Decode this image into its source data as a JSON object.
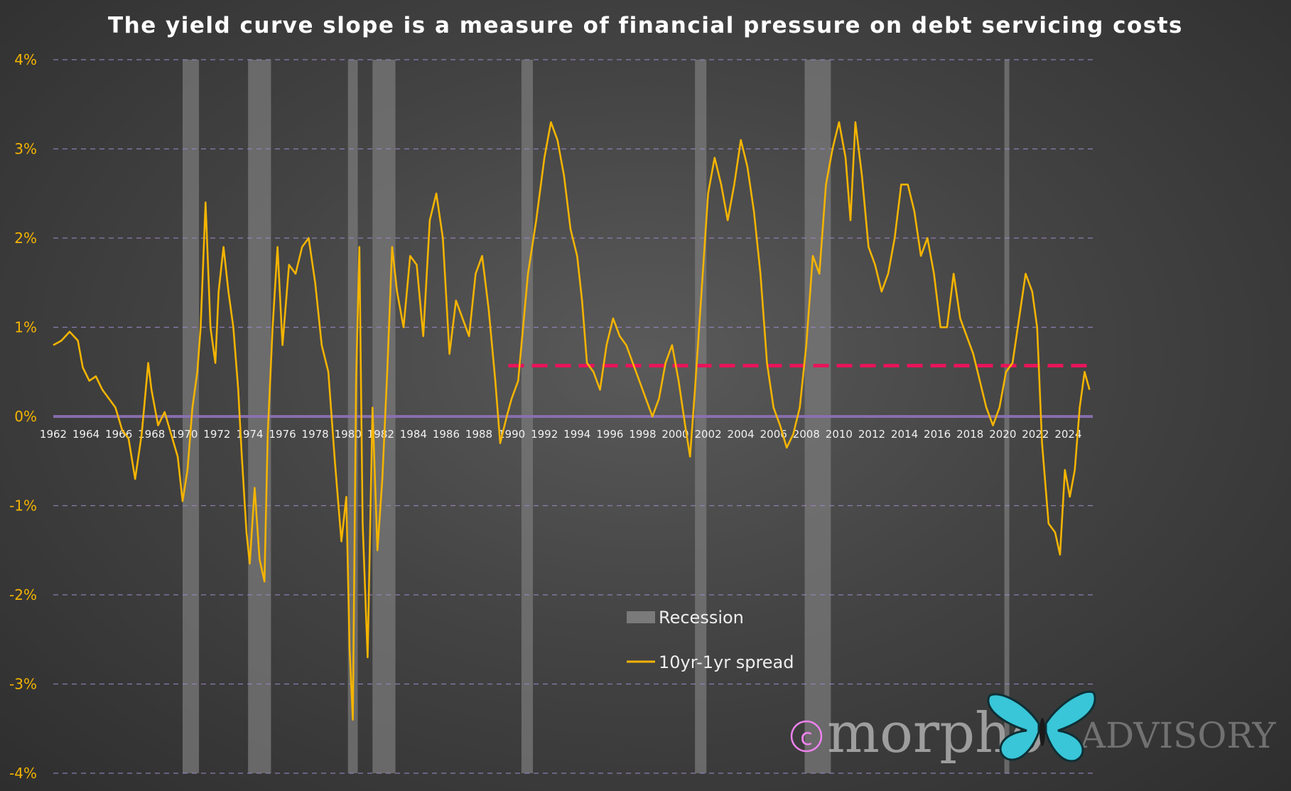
{
  "chart_data": {
    "type": "line",
    "title": "The yield curve slope is a measure of financial pressure on debt servicing costs",
    "ylim": [
      -4,
      4
    ],
    "xlim": [
      1962,
      2025.5
    ],
    "y_ticks": [
      {
        "value": 4,
        "label": "4%"
      },
      {
        "value": 3,
        "label": "3%"
      },
      {
        "value": 2,
        "label": "2%"
      },
      {
        "value": 1,
        "label": "1%"
      },
      {
        "value": 0,
        "label": "0%"
      },
      {
        "value": -1,
        "label": "-1%"
      },
      {
        "value": -2,
        "label": "-2%"
      },
      {
        "value": -3,
        "label": "-3%"
      },
      {
        "value": -4,
        "label": "-4%"
      }
    ],
    "x_ticks": [
      "1962",
      "1964",
      "1966",
      "1968",
      "1970",
      "1972",
      "1974",
      "1976",
      "1978",
      "1980",
      "1982",
      "1984",
      "1986",
      "1988",
      "1990",
      "1992",
      "1994",
      "1996",
      "1998",
      "2000",
      "2002",
      "2004",
      "2006",
      "2008",
      "2010",
      "2012",
      "2014",
      "2016",
      "2018",
      "2020",
      "2022",
      "2024"
    ],
    "grid": "horizontal dashed",
    "legend_position": "bottom-center",
    "legend": {
      "recession": "Recession",
      "spread": "10yr-1yr spread"
    },
    "recessions": [
      [
        1969.9,
        1970.9
      ],
      [
        1973.9,
        1975.3
      ],
      [
        1980.0,
        1980.6
      ],
      [
        1981.5,
        1982.9
      ],
      [
        1990.6,
        1991.3
      ],
      [
        2001.2,
        2001.9
      ],
      [
        2007.9,
        2009.5
      ],
      [
        2020.1,
        2020.4
      ]
    ],
    "reference_lines": [
      {
        "name": "zero line",
        "value": 0,
        "x_start": 1962,
        "x_end": 2025.5,
        "color": "#8e72b8",
        "style": "solid"
      },
      {
        "name": "threshold",
        "value": 0.57,
        "x_start": 1989.8,
        "x_end": 2025.5,
        "color": "#e8145a",
        "style": "dashed"
      }
    ],
    "series": [
      {
        "color": "#f4b400",
        "points": [
          [
            1962.0,
            0.8
          ],
          [
            1962.5,
            0.85
          ],
          [
            1963.0,
            0.95
          ],
          [
            1963.5,
            0.85
          ],
          [
            1963.8,
            0.55
          ],
          [
            1964.2,
            0.4
          ],
          [
            1964.6,
            0.45
          ],
          [
            1965.0,
            0.3
          ],
          [
            1965.4,
            0.2
          ],
          [
            1965.8,
            0.1
          ],
          [
            1966.2,
            -0.15
          ],
          [
            1966.6,
            -0.25
          ],
          [
            1967.0,
            -0.7
          ],
          [
            1967.4,
            -0.2
          ],
          [
            1967.8,
            0.6
          ],
          [
            1968.0,
            0.3
          ],
          [
            1968.4,
            -0.1
          ],
          [
            1968.8,
            0.05
          ],
          [
            1969.2,
            -0.2
          ],
          [
            1969.6,
            -0.45
          ],
          [
            1969.9,
            -0.95
          ],
          [
            1970.2,
            -0.6
          ],
          [
            1970.5,
            0.1
          ],
          [
            1970.8,
            0.5
          ],
          [
            1971.0,
            1.0
          ],
          [
            1971.3,
            2.4
          ],
          [
            1971.6,
            1.0
          ],
          [
            1971.9,
            0.6
          ],
          [
            1972.1,
            1.4
          ],
          [
            1972.4,
            1.9
          ],
          [
            1972.7,
            1.4
          ],
          [
            1973.0,
            1.0
          ],
          [
            1973.3,
            0.3
          ],
          [
            1973.5,
            -0.4
          ],
          [
            1973.8,
            -1.3
          ],
          [
            1974.0,
            -1.65
          ],
          [
            1974.3,
            -0.8
          ],
          [
            1974.6,
            -1.6
          ],
          [
            1974.9,
            -1.85
          ],
          [
            1975.1,
            -0.2
          ],
          [
            1975.4,
            1.0
          ],
          [
            1975.7,
            1.9
          ],
          [
            1976.0,
            0.8
          ],
          [
            1976.4,
            1.7
          ],
          [
            1976.8,
            1.6
          ],
          [
            1977.2,
            1.9
          ],
          [
            1977.6,
            2.0
          ],
          [
            1978.0,
            1.5
          ],
          [
            1978.4,
            0.8
          ],
          [
            1978.8,
            0.5
          ],
          [
            1979.2,
            -0.5
          ],
          [
            1979.6,
            -1.4
          ],
          [
            1979.9,
            -0.9
          ],
          [
            1980.1,
            -2.6
          ],
          [
            1980.3,
            -3.4
          ],
          [
            1980.5,
            0.4
          ],
          [
            1980.7,
            1.9
          ],
          [
            1980.9,
            -1.2
          ],
          [
            1981.2,
            -2.7
          ],
          [
            1981.5,
            0.1
          ],
          [
            1981.8,
            -1.5
          ],
          [
            1982.1,
            -0.7
          ],
          [
            1982.4,
            0.5
          ],
          [
            1982.7,
            1.9
          ],
          [
            1983.0,
            1.4
          ],
          [
            1983.4,
            1.0
          ],
          [
            1983.8,
            1.8
          ],
          [
            1984.2,
            1.7
          ],
          [
            1984.6,
            0.9
          ],
          [
            1985.0,
            2.2
          ],
          [
            1985.4,
            2.5
          ],
          [
            1985.8,
            2.0
          ],
          [
            1986.2,
            0.7
          ],
          [
            1986.6,
            1.3
          ],
          [
            1987.0,
            1.1
          ],
          [
            1987.4,
            0.9
          ],
          [
            1987.8,
            1.6
          ],
          [
            1988.2,
            1.8
          ],
          [
            1988.6,
            1.2
          ],
          [
            1989.0,
            0.4
          ],
          [
            1989.3,
            -0.3
          ],
          [
            1989.7,
            0.0
          ],
          [
            1990.0,
            0.2
          ],
          [
            1990.4,
            0.4
          ],
          [
            1990.7,
            1.0
          ],
          [
            1991.0,
            1.6
          ],
          [
            1991.5,
            2.2
          ],
          [
            1992.0,
            2.9
          ],
          [
            1992.4,
            3.3
          ],
          [
            1992.8,
            3.1
          ],
          [
            1993.2,
            2.7
          ],
          [
            1993.6,
            2.1
          ],
          [
            1994.0,
            1.8
          ],
          [
            1994.3,
            1.3
          ],
          [
            1994.6,
            0.6
          ],
          [
            1995.0,
            0.5
          ],
          [
            1995.4,
            0.3
          ],
          [
            1995.8,
            0.8
          ],
          [
            1996.2,
            1.1
          ],
          [
            1996.6,
            0.9
          ],
          [
            1997.0,
            0.8
          ],
          [
            1997.4,
            0.6
          ],
          [
            1997.8,
            0.4
          ],
          [
            1998.2,
            0.2
          ],
          [
            1998.6,
            0.0
          ],
          [
            1999.0,
            0.2
          ],
          [
            1999.4,
            0.6
          ],
          [
            1999.8,
            0.8
          ],
          [
            2000.2,
            0.4
          ],
          [
            2000.6,
            -0.1
          ],
          [
            2000.9,
            -0.45
          ],
          [
            2001.2,
            0.3
          ],
          [
            2001.6,
            1.4
          ],
          [
            2002.0,
            2.5
          ],
          [
            2002.4,
            2.9
          ],
          [
            2002.8,
            2.6
          ],
          [
            2003.2,
            2.2
          ],
          [
            2003.6,
            2.6
          ],
          [
            2004.0,
            3.1
          ],
          [
            2004.4,
            2.8
          ],
          [
            2004.8,
            2.3
          ],
          [
            2005.2,
            1.6
          ],
          [
            2005.6,
            0.6
          ],
          [
            2006.0,
            0.1
          ],
          [
            2006.4,
            -0.1
          ],
          [
            2006.8,
            -0.35
          ],
          [
            2007.2,
            -0.2
          ],
          [
            2007.6,
            0.1
          ],
          [
            2008.0,
            0.8
          ],
          [
            2008.4,
            1.8
          ],
          [
            2008.8,
            1.6
          ],
          [
            2009.2,
            2.6
          ],
          [
            2009.6,
            3.0
          ],
          [
            2010.0,
            3.3
          ],
          [
            2010.4,
            2.9
          ],
          [
            2010.7,
            2.2
          ],
          [
            2011.0,
            3.3
          ],
          [
            2011.4,
            2.7
          ],
          [
            2011.8,
            1.9
          ],
          [
            2012.2,
            1.7
          ],
          [
            2012.6,
            1.4
          ],
          [
            2013.0,
            1.6
          ],
          [
            2013.4,
            2.0
          ],
          [
            2013.8,
            2.6
          ],
          [
            2014.2,
            2.6
          ],
          [
            2014.6,
            2.3
          ],
          [
            2015.0,
            1.8
          ],
          [
            2015.4,
            2.0
          ],
          [
            2015.8,
            1.6
          ],
          [
            2016.2,
            1.0
          ],
          [
            2016.6,
            1.0
          ],
          [
            2017.0,
            1.6
          ],
          [
            2017.4,
            1.1
          ],
          [
            2017.8,
            0.9
          ],
          [
            2018.2,
            0.7
          ],
          [
            2018.6,
            0.4
          ],
          [
            2019.0,
            0.1
          ],
          [
            2019.4,
            -0.1
          ],
          [
            2019.8,
            0.1
          ],
          [
            2020.2,
            0.5
          ],
          [
            2020.6,
            0.6
          ],
          [
            2021.0,
            1.1
          ],
          [
            2021.4,
            1.6
          ],
          [
            2021.8,
            1.4
          ],
          [
            2022.1,
            1.0
          ],
          [
            2022.4,
            -0.3
          ],
          [
            2022.8,
            -1.2
          ],
          [
            2023.2,
            -1.3
          ],
          [
            2023.5,
            -1.55
          ],
          [
            2023.8,
            -0.6
          ],
          [
            2024.1,
            -0.9
          ],
          [
            2024.4,
            -0.6
          ],
          [
            2024.7,
            0.1
          ],
          [
            2025.0,
            0.5
          ],
          [
            2025.3,
            0.3
          ]
        ]
      }
    ]
  },
  "watermark": {
    "copyright_symbol": "c",
    "brand": "morpho",
    "brand_suffix": "ADVISORY",
    "butterfly_color": "#38c6d8"
  }
}
